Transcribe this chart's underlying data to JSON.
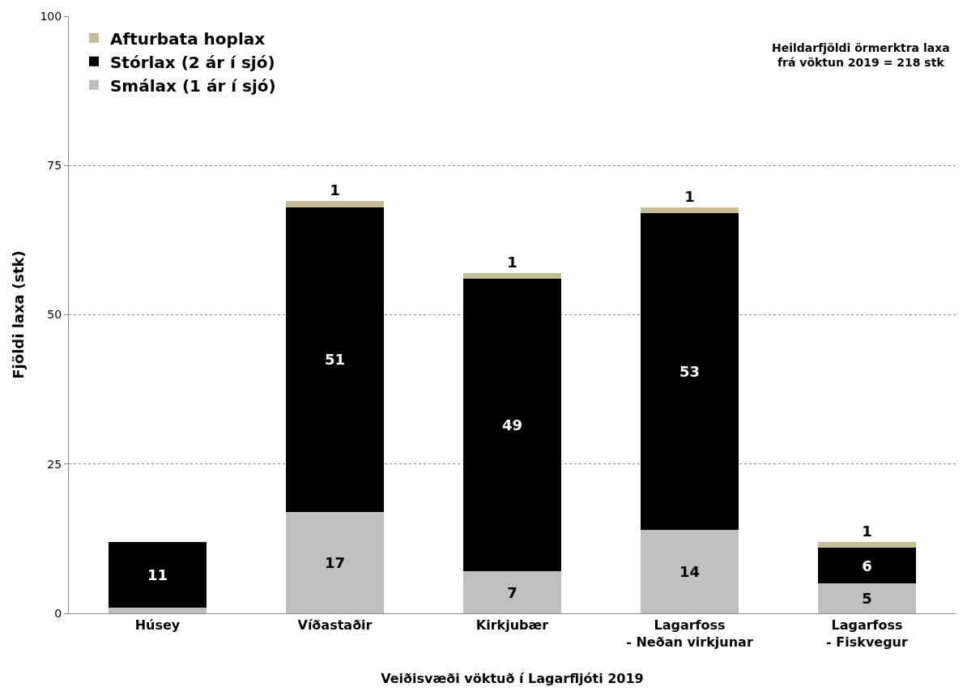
{
  "chart_data": {
    "type": "bar",
    "stacked": true,
    "categories": [
      "Húsey",
      "Víðastaðir",
      "Kirkjubær",
      "Lagarfoss\n- Neðan virkjunar",
      "Lagarfoss\n- Fiskvegur"
    ],
    "series": [
      {
        "name": "Smálax (1 ár í sjó)",
        "color": "#bfbfbf",
        "values": [
          1,
          17,
          7,
          14,
          5
        ],
        "value_labels": [
          null,
          "17",
          "7",
          "14",
          "5"
        ]
      },
      {
        "name": "Stórlax (2 ár í sjó)",
        "color": "#000000",
        "values": [
          11,
          51,
          49,
          53,
          6
        ],
        "value_labels": [
          "11",
          "51",
          "49",
          "53",
          "6"
        ]
      },
      {
        "name": "Afturbata hoplax",
        "color": "#c4bd97",
        "values": [
          0,
          1,
          1,
          1,
          1
        ],
        "value_labels": [
          null,
          "1",
          "1",
          "1",
          "1"
        ]
      }
    ],
    "xlabel": "Veiðisvæði vöktuð í Lagarfljóti 2019",
    "ylabel": "Fjöldi laxa (stk)",
    "ylim": [
      0,
      100
    ],
    "yticks": [
      0,
      25,
      50,
      75,
      100
    ],
    "grid": "y",
    "legend": "top left",
    "annotations": [
      "Heildarfjöldi örmerktra laxa\nfrá vöktun 2019 = 218 stk"
    ]
  }
}
